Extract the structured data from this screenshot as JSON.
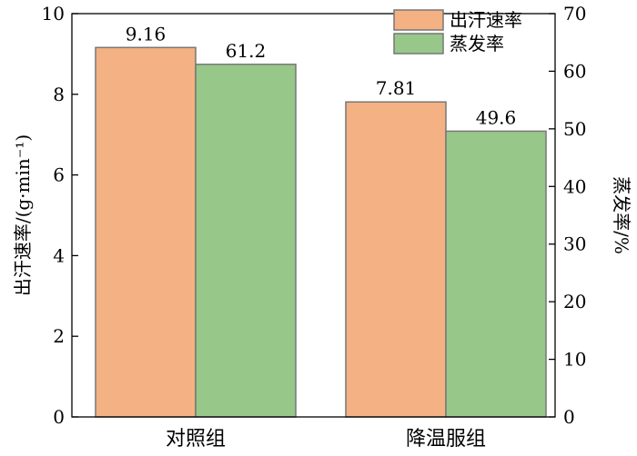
{
  "chart_data": {
    "type": "bar",
    "categories": [
      "对照组",
      "降温服组"
    ],
    "series": [
      {
        "name": "出汗速率",
        "axis": "left",
        "values": [
          9.16,
          7.81
        ],
        "labels": [
          "9.16",
          "7.81"
        ],
        "color": "#f4b183"
      },
      {
        "name": "蒸发率",
        "axis": "right",
        "values": [
          61.2,
          49.6
        ],
        "labels": [
          "61.2",
          "49.6"
        ],
        "color": "#97c789"
      }
    ],
    "ylabel": "出汗速率/(g·min⁻¹)",
    "y2label": "蒸发率/%",
    "ylim": [
      0,
      10
    ],
    "y2lim": [
      0,
      70
    ],
    "yticks": [
      "0",
      "2",
      "4",
      "6",
      "8",
      "10"
    ],
    "y2ticks": [
      "0",
      "10",
      "20",
      "30",
      "40",
      "50",
      "60",
      "70"
    ],
    "legend_position": "top-right",
    "grid": false
  }
}
